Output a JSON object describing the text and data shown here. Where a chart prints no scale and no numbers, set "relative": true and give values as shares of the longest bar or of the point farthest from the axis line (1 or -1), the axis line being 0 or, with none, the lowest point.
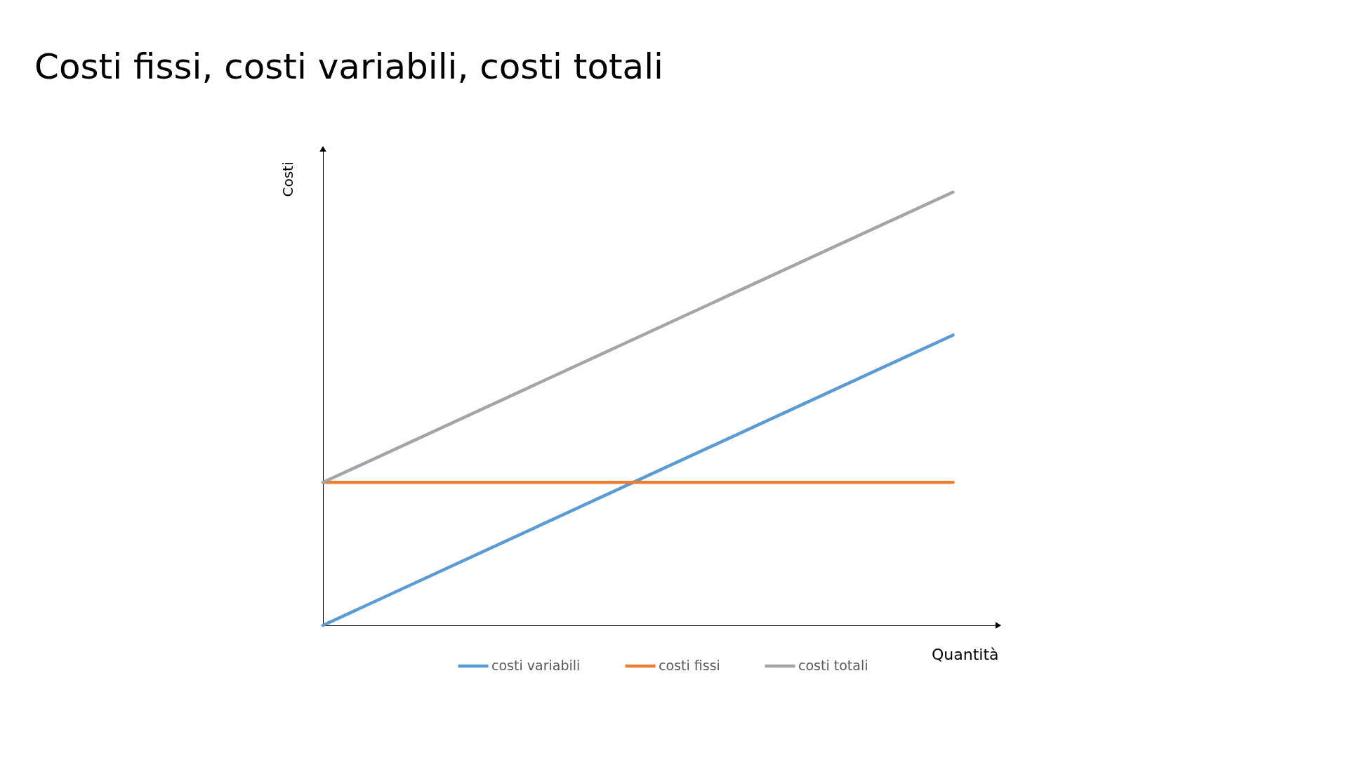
{
  "chart_data": {
    "type": "line",
    "title": "Costi fissi, costi variabili, costi totali",
    "xlabel": "Quantità",
    "ylabel": "Costi",
    "categories": [
      null,
      null
    ],
    "relative": true,
    "series": [
      {
        "name": "costi variabili",
        "color": "#5b9bd5",
        "values": [
          0,
          0.67
        ]
      },
      {
        "name": "costi fissi",
        "color": "#ed7d31",
        "values": [
          0.33,
          0.33
        ]
      },
      {
        "name": "costi totali",
        "color": "#a5a5a5",
        "values": [
          0.33,
          1
        ]
      }
    ],
    "legend": "bottom",
    "grid": false,
    "line_style": "solid"
  }
}
